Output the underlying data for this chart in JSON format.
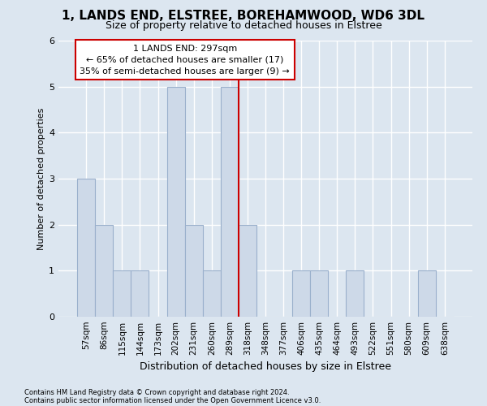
{
  "title": "1, LANDS END, ELSTREE, BOREHAMWOOD, WD6 3DL",
  "subtitle": "Size of property relative to detached houses in Elstree",
  "xlabel": "Distribution of detached houses by size in Elstree",
  "ylabel": "Number of detached properties",
  "footnote1": "Contains HM Land Registry data © Crown copyright and database right 2024.",
  "footnote2": "Contains public sector information licensed under the Open Government Licence v3.0.",
  "bin_labels": [
    "57sqm",
    "86sqm",
    "115sqm",
    "144sqm",
    "173sqm",
    "202sqm",
    "231sqm",
    "260sqm",
    "289sqm",
    "318sqm",
    "348sqm",
    "377sqm",
    "406sqm",
    "435sqm",
    "464sqm",
    "493sqm",
    "522sqm",
    "551sqm",
    "580sqm",
    "609sqm",
    "638sqm"
  ],
  "bin_counts": [
    3,
    2,
    1,
    1,
    0,
    5,
    2,
    1,
    5,
    2,
    0,
    0,
    1,
    1,
    0,
    1,
    0,
    0,
    0,
    1,
    0
  ],
  "bar_color": "#cdd9e8",
  "bar_edge_color": "#9ab0cc",
  "vline_index": 8,
  "annotation_line1": "1 LANDS END: 297sqm",
  "annotation_line2": "← 65% of detached houses are smaller (17)",
  "annotation_line3": "35% of semi-detached houses are larger (9) →",
  "annotation_box_color": "white",
  "annotation_box_edge_color": "#cc0000",
  "vline_color": "#cc0000",
  "ylim_max": 6,
  "background_color": "#dce6f0",
  "grid_color": "white",
  "title_fontsize": 11,
  "subtitle_fontsize": 9,
  "ylabel_fontsize": 8,
  "xlabel_fontsize": 9,
  "tick_fontsize": 7.5,
  "annotation_fontsize": 8,
  "footnote_fontsize": 6
}
